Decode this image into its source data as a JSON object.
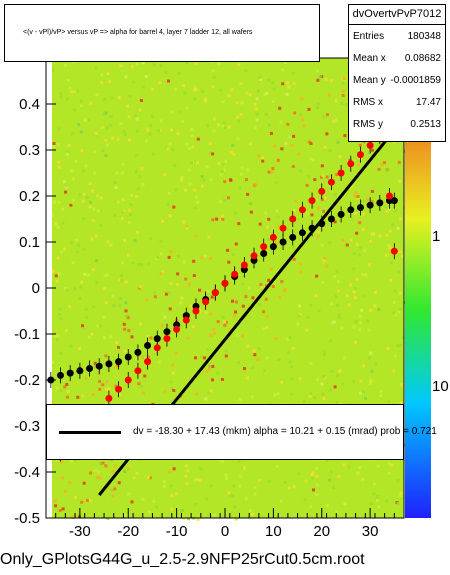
{
  "chart_data": {
    "type": "scatter",
    "title": "<(v - vPl)/vP> versus   vP => alpha for barrel 4, layer 7 ladder 12, all wafers",
    "xlim": [
      -37,
      37
    ],
    "ylim": [
      -0.5,
      0.5
    ],
    "x_ticks": [
      -30,
      -20,
      -10,
      0,
      10,
      20,
      30
    ],
    "y_ticks": [
      -0.5,
      -0.4,
      -0.3,
      -0.2,
      -0.1,
      0,
      0.1,
      0.2,
      0.3,
      0.4
    ],
    "y_tick_labels": [
      "-0.5",
      "-0.4",
      "-0.3",
      "-0.2",
      "-0.1",
      "0",
      "0.1",
      "0.2",
      "0.3",
      "0.4"
    ],
    "x_tick_labels": [
      "-30",
      "-20",
      "-10",
      "0",
      "10",
      "20",
      "30"
    ],
    "colorbar_labels": [
      "1",
      "10"
    ],
    "colorbar_label_values": [
      1,
      10
    ],
    "grid": false,
    "series": [
      {
        "marker": "circle",
        "color": "#000000",
        "x": [
          -36,
          -34,
          -32,
          -30,
          -28,
          -26,
          -24,
          -22,
          -20,
          -18,
          -16,
          -14,
          -12,
          -10,
          -8,
          -6,
          -4,
          -2,
          0,
          2,
          4,
          6,
          8,
          10,
          12,
          14,
          16,
          18,
          20,
          22,
          24,
          26,
          28,
          30,
          32,
          34,
          35
        ],
        "y": [
          -0.2,
          -0.19,
          -0.185,
          -0.18,
          -0.175,
          -0.17,
          -0.165,
          -0.16,
          -0.15,
          -0.14,
          -0.125,
          -0.11,
          -0.095,
          -0.08,
          -0.06,
          -0.04,
          -0.025,
          -0.01,
          0.01,
          0.025,
          0.04,
          0.06,
          0.075,
          0.09,
          0.1,
          0.11,
          0.12,
          0.13,
          0.14,
          0.15,
          0.16,
          0.17,
          0.175,
          0.18,
          0.185,
          0.19,
          0.19
        ]
      },
      {
        "marker": "circle",
        "color": "#ff0000",
        "x": [
          -34,
          -32,
          -30,
          -28,
          -26,
          -24,
          -22,
          -20,
          -18,
          -16,
          -14,
          -12,
          -10,
          -8,
          -6,
          -4,
          -2,
          0,
          2,
          4,
          6,
          8,
          10,
          12,
          14,
          16,
          18,
          20,
          22,
          24,
          26,
          28,
          30,
          32,
          34,
          35
        ],
        "y": [
          -0.36,
          -0.33,
          -0.31,
          -0.29,
          -0.27,
          -0.24,
          -0.22,
          -0.2,
          -0.18,
          -0.16,
          -0.13,
          -0.11,
          -0.09,
          -0.07,
          -0.05,
          -0.03,
          -0.01,
          0.01,
          0.03,
          0.05,
          0.07,
          0.09,
          0.11,
          0.13,
          0.15,
          0.17,
          0.19,
          0.21,
          0.23,
          0.25,
          0.27,
          0.29,
          0.31,
          0.33,
          0.2,
          0.08
        ]
      }
    ],
    "fit_line": {
      "x": [
        -26,
        34
      ],
      "y": [
        -0.45,
        0.33
      ],
      "color": "#000000"
    }
  },
  "stats": {
    "name": "dvOvertvPvP7012",
    "rows": [
      {
        "label": "Entries",
        "value": "180348"
      },
      {
        "label": "Mean x",
        "value": "0.08682"
      },
      {
        "label": "Mean y",
        "value": "-0.0001859"
      },
      {
        "label": "RMS x",
        "value": "17.47"
      },
      {
        "label": "RMS y",
        "value": "0.2513"
      }
    ]
  },
  "legend": {
    "text": "dv =  -18.30 +  17.43 (mkm) alpha =   10.21 +  0.15 (mrad) prob = 0.721"
  },
  "footer": "Only_GPlotsG44G_u_2.5-2.9NFP25rCut0.5cm.root"
}
